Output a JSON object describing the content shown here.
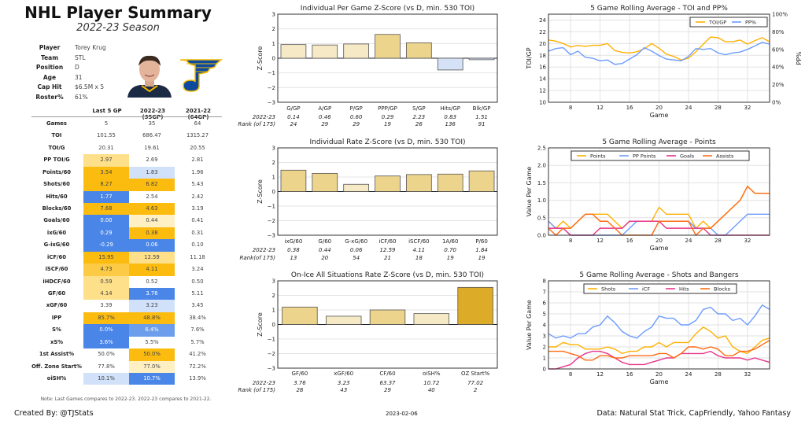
{
  "header": {
    "title": "NHL Player Summary",
    "subtitle": "2022-23 Season"
  },
  "player_info": [
    {
      "label": "Player",
      "value": "Torey Krug"
    },
    {
      "label": "Team",
      "value": "STL"
    },
    {
      "label": "Position",
      "value": "D"
    },
    {
      "label": "Age",
      "value": "31"
    },
    {
      "label": "Cap Hit",
      "value": "$6.5M x 5"
    },
    {
      "label": "Roster%",
      "value": "61%"
    }
  ],
  "images": {
    "headshot": "player-headshot",
    "logo": "St. Louis Blues logo"
  },
  "cell_colors": {
    "gold": "#fbbc0f",
    "midgold": "#fcca45",
    "lightgold": "#fedf8a",
    "palegold": "#fff0c4",
    "blue": "#4a86e8",
    "midblue": "#6d9eeb",
    "lightblue": "#d2e1fa",
    "": "transparent"
  },
  "table": {
    "columns": [
      "Last 5 GP",
      "2022-23 (35GP)",
      "2021-22 (64GP)"
    ],
    "rows": [
      {
        "label": "Games",
        "values": [
          "5",
          "35",
          "64"
        ],
        "colors": [
          "",
          ""
        ]
      },
      {
        "label": "TOI",
        "values": [
          "101.55",
          "686.47",
          "1315.27"
        ],
        "colors": [
          "",
          ""
        ]
      },
      {
        "label": "TOI/G",
        "values": [
          "20.31",
          "19.61",
          "20.55"
        ],
        "colors": [
          "",
          ""
        ]
      },
      {
        "label": "PP TOI/G",
        "values": [
          "2.97",
          "2.69",
          "2.81"
        ],
        "colors": [
          "lightgold",
          ""
        ]
      },
      {
        "label": "Points/60",
        "values": [
          "3.54",
          "1.83",
          "1.96"
        ],
        "colors": [
          "gold",
          "lightblue"
        ]
      },
      {
        "label": "Shots/60",
        "values": [
          "8.27",
          "6.82",
          "5.43"
        ],
        "colors": [
          "gold",
          "gold"
        ]
      },
      {
        "label": "Hits/60",
        "values": [
          "1.77",
          "2.54",
          "2.42"
        ],
        "colors": [
          "blue",
          ""
        ]
      },
      {
        "label": "Blocks/60",
        "values": [
          "7.68",
          "4.63",
          "3.19"
        ],
        "colors": [
          "gold",
          "gold"
        ]
      },
      {
        "label": "Goals/60",
        "values": [
          "0.00",
          "0.44",
          "0.41"
        ],
        "colors": [
          "blue",
          "palegold"
        ]
      },
      {
        "label": "ixG/60",
        "values": [
          "0.29",
          "0.38",
          "0.31"
        ],
        "colors": [
          "blue",
          "gold"
        ]
      },
      {
        "label": "G-ixG/60",
        "values": [
          "-0.29",
          "0.06",
          "0.10"
        ],
        "colors": [
          "blue",
          "blue"
        ]
      },
      {
        "label": "iCF/60",
        "values": [
          "15.95",
          "12.59",
          "11.18"
        ],
        "colors": [
          "gold",
          "lightgold"
        ]
      },
      {
        "label": "iSCF/60",
        "values": [
          "4.73",
          "4.11",
          "3.24"
        ],
        "colors": [
          "midgold",
          "gold"
        ]
      },
      {
        "label": "iHDCF/60",
        "values": [
          "0.59",
          "0.52",
          "0.50"
        ],
        "colors": [
          "lightgold",
          ""
        ]
      },
      {
        "label": "GF/60",
        "values": [
          "4.14",
          "3.76",
          "5.11"
        ],
        "colors": [
          "lightgold",
          "blue"
        ]
      },
      {
        "label": "xGF/60",
        "values": [
          "3.39",
          "3.23",
          "3.45"
        ],
        "colors": [
          "",
          "lightblue"
        ]
      },
      {
        "label": "IPP",
        "values": [
          "85.7%",
          "48.8%",
          "38.4%"
        ],
        "colors": [
          "gold",
          "gold"
        ]
      },
      {
        "label": "S%",
        "values": [
          "0.0%",
          "6.4%",
          "7.6%"
        ],
        "colors": [
          "blue",
          "midblue"
        ]
      },
      {
        "label": "xS%",
        "values": [
          "3.6%",
          "5.5%",
          "5.7%"
        ],
        "colors": [
          "blue",
          ""
        ]
      },
      {
        "label": "1st Assist%",
        "values": [
          "50.0%",
          "50.0%",
          "41.2%"
        ],
        "colors": [
          "",
          "gold"
        ]
      },
      {
        "label": "Off. Zone Start%",
        "values": [
          "77.8%",
          "77.0%",
          "72.2%"
        ],
        "colors": [
          "",
          "palegold"
        ]
      },
      {
        "label": "oiSH%",
        "values": [
          "10.1%",
          "10.7%",
          "13.9%"
        ],
        "colors": [
          "lightblue",
          "blue"
        ]
      }
    ],
    "note": "Note: Last Games compares to 2022-23. 2022-23 compares to 2021-22."
  },
  "footer": {
    "credit": "Created By: @TJStats",
    "date": "2023-02-06",
    "source": "Data: Natural Stat Trick, CapFriendly, Yahoo Fantasy"
  },
  "chart_data": [
    {
      "type": "bar",
      "title": "Individual Per Game Z-Score (vs D, min. 530 TOI)",
      "ylabel": "Z-Score",
      "ylim": [
        -3,
        3
      ],
      "yticks": [
        "3",
        "2",
        "1",
        "0",
        "−1",
        "−2",
        "−3"
      ],
      "grid": true,
      "categories": [
        "G/GP",
        "A/GP",
        "P/GP",
        "PPP/GP",
        "S/GP",
        "Hits/GP",
        "Blk/GP"
      ],
      "values": [
        0.93,
        0.9,
        0.97,
        1.62,
        1.05,
        -0.8,
        -0.1
      ],
      "row_labels": [
        "2022-23",
        "Rank (of 175)"
      ],
      "season_values": [
        "0.14",
        "0.46",
        "0.60",
        "0.29",
        "2.23",
        "0.83",
        "1.51"
      ],
      "ranks": [
        "24",
        "29",
        "29",
        "19",
        "26",
        "136",
        "91"
      ]
    },
    {
      "type": "bar",
      "title": "Individual Rate Z-Score (vs D, min. 530 TOI)",
      "ylabel": "Z-Score",
      "ylim": [
        -3,
        3
      ],
      "yticks": [
        "3",
        "2",
        "1",
        "0",
        "−1",
        "−2",
        "−3"
      ],
      "grid": true,
      "categories": [
        "ixG/60",
        "G/60",
        "G-xG/60",
        "iCF/60",
        "iSCF/60",
        "1A/60",
        "P/60"
      ],
      "values": [
        1.47,
        1.25,
        0.5,
        1.07,
        1.17,
        1.2,
        1.42
      ],
      "row_labels": [
        "2022-23",
        "Rank(of 175)"
      ],
      "season_values": [
        "0.38",
        "0.44",
        "0.06",
        "12.59",
        "4.11",
        "0.70",
        "1.84"
      ],
      "ranks": [
        "13",
        "20",
        "54",
        "21",
        "18",
        "19",
        "19"
      ]
    },
    {
      "type": "bar",
      "title": "On-Ice All Situations Rate Z-Score (vs D, min. 530 TOI)",
      "ylabel": "Z-Score",
      "ylim": [
        -3,
        3
      ],
      "yticks": [
        "3",
        "2",
        "1",
        "0",
        "−1",
        "−2",
        "−3"
      ],
      "grid": true,
      "categories": [
        "GF/60",
        "xGF/60",
        "CF/60",
        "oiSH%",
        "OZ Start%"
      ],
      "values": [
        1.2,
        0.57,
        1.0,
        0.75,
        2.55
      ],
      "row_labels": [
        "2022-23",
        "Rank (of 175)"
      ],
      "season_values": [
        "3.76",
        "3.23",
        "63.37",
        "10.72",
        "77.02"
      ],
      "ranks": [
        "28",
        "43",
        "29",
        "40",
        "2"
      ]
    },
    {
      "type": "line",
      "title": "5 Game Rolling Average - TOI and PP%",
      "xlabel": "Game",
      "ylabel": "TOI/GP",
      "ylabel_right": "PP%",
      "xlim": [
        5,
        35
      ],
      "ylim": [
        10,
        25
      ],
      "ylim_right": [
        0,
        100
      ],
      "xticks": [
        "8",
        "12",
        "16",
        "20",
        "24",
        "28",
        "32"
      ],
      "yticks": [
        "10",
        "12",
        "14",
        "16",
        "18",
        "20",
        "22",
        "24"
      ],
      "yticks_right": [
        "0%",
        "20%",
        "40%",
        "60%",
        "80%",
        "100%"
      ],
      "grid": true,
      "legend": "top-right",
      "x": [
        5,
        6,
        7,
        8,
        9,
        10,
        11,
        12,
        13,
        14,
        15,
        16,
        17,
        18,
        19,
        20,
        21,
        22,
        23,
        24,
        25,
        26,
        27,
        28,
        29,
        30,
        31,
        32,
        33,
        34,
        35
      ],
      "series": [
        {
          "name": "TOI/GP",
          "axis": "left",
          "color": "#ffb000",
          "values": [
            20.6,
            20.4,
            20.0,
            19.4,
            19.7,
            19.5,
            19.7,
            19.7,
            20.0,
            18.8,
            18.5,
            18.4,
            18.6,
            19.1,
            20.0,
            19.2,
            18.2,
            17.8,
            17.2,
            17.5,
            18.6,
            19.9,
            21.1,
            21.0,
            20.3,
            20.3,
            20.6,
            19.9,
            20.5,
            21.0,
            20.3
          ]
        },
        {
          "name": "PP%",
          "axis": "right",
          "color": "#6c9cff",
          "values": [
            58,
            61,
            62,
            54,
            58,
            51,
            50,
            47,
            48,
            43,
            44,
            49,
            54,
            62,
            58,
            53,
            49,
            48,
            47,
            52,
            61,
            60,
            61,
            56,
            54,
            56,
            57,
            60,
            64,
            68,
            66
          ]
        }
      ]
    },
    {
      "type": "line",
      "title": "5 Game Rolling Average - Points",
      "xlabel": "Game",
      "ylabel": "Value Per Game",
      "xlim": [
        5,
        35
      ],
      "ylim": [
        0,
        2.5
      ],
      "xticks": [
        "8",
        "12",
        "16",
        "20",
        "24",
        "28",
        "32"
      ],
      "yticks": [
        "0.0",
        "0.5",
        "1.0",
        "1.5",
        "2.0",
        "2.5"
      ],
      "grid": true,
      "legend": "top",
      "x": [
        5,
        6,
        7,
        8,
        9,
        10,
        11,
        12,
        13,
        14,
        15,
        16,
        17,
        18,
        19,
        20,
        21,
        22,
        23,
        24,
        25,
        26,
        27,
        28,
        29,
        30,
        31,
        32,
        33,
        34,
        35
      ],
      "series": [
        {
          "name": "Points",
          "color": "#ffb000",
          "values": [
            0.4,
            0.2,
            0.4,
            0.2,
            0.4,
            0.6,
            0.6,
            0.6,
            0.6,
            0.4,
            0.2,
            0.4,
            0.4,
            0.4,
            0.4,
            0.8,
            0.6,
            0.6,
            0.6,
            0.6,
            0.2,
            0.4,
            0.2,
            0.4,
            0.6,
            0.8,
            1.0,
            1.4,
            1.2,
            1.2,
            1.2
          ]
        },
        {
          "name": "PP Points",
          "color": "#6c9cff",
          "values": [
            0.4,
            0.2,
            0.2,
            0,
            0,
            0,
            0,
            0,
            0,
            0,
            0,
            0.2,
            0.4,
            0.4,
            0.4,
            0.4,
            0.4,
            0.4,
            0.4,
            0.4,
            0.2,
            0.2,
            0.2,
            0,
            0,
            0.2,
            0.4,
            0.6,
            0.6,
            0.6,
            0.6
          ]
        },
        {
          "name": "Goals",
          "color": "#e6358a",
          "values": [
            0.2,
            0.2,
            0.2,
            0,
            0,
            0,
            0,
            0.2,
            0.2,
            0.2,
            0.2,
            0.4,
            0.4,
            0.4,
            0.4,
            0.4,
            0.2,
            0.2,
            0.2,
            0.2,
            0.2,
            0.2,
            0,
            0,
            0,
            0,
            0,
            0,
            0,
            0,
            0
          ]
        },
        {
          "name": "Assists",
          "color": "#ff6a13",
          "values": [
            0.2,
            0,
            0.2,
            0.2,
            0.4,
            0.6,
            0.6,
            0.4,
            0.4,
            0.2,
            0,
            0,
            0,
            0,
            0,
            0.4,
            0.4,
            0.4,
            0.4,
            0.4,
            0,
            0.2,
            0.2,
            0.4,
            0.6,
            0.8,
            1.0,
            1.4,
            1.2,
            1.2,
            1.2
          ]
        }
      ]
    },
    {
      "type": "line",
      "title": "5 Game Rolling Average - Shots and Bangers",
      "xlabel": "Game",
      "ylabel": "Value Per Game",
      "xlim": [
        5,
        35
      ],
      "ylim": [
        0,
        8
      ],
      "xticks": [
        "8",
        "12",
        "16",
        "20",
        "24",
        "28",
        "32"
      ],
      "yticks": [
        "0",
        "1",
        "2",
        "3",
        "4",
        "5",
        "6",
        "7",
        "8"
      ],
      "grid": true,
      "legend": "top",
      "x": [
        5,
        6,
        7,
        8,
        9,
        10,
        11,
        12,
        13,
        14,
        15,
        16,
        17,
        18,
        19,
        20,
        21,
        22,
        23,
        24,
        25,
        26,
        27,
        28,
        29,
        30,
        31,
        32,
        33,
        34,
        35
      ],
      "series": [
        {
          "name": "Shots",
          "color": "#ffb000",
          "values": [
            2.0,
            2.0,
            2.4,
            2.2,
            2.2,
            1.8,
            1.8,
            1.8,
            2.0,
            1.8,
            1.4,
            1.6,
            1.6,
            2.0,
            2.0,
            2.4,
            2.0,
            2.4,
            2.4,
            2.4,
            3.2,
            3.8,
            3.4,
            2.8,
            3.0,
            2.0,
            1.6,
            1.4,
            2.0,
            2.6,
            2.8
          ]
        },
        {
          "name": "iCF",
          "color": "#6c9cff",
          "values": [
            3.2,
            2.8,
            3.0,
            2.8,
            3.2,
            3.2,
            3.8,
            4.0,
            4.8,
            4.2,
            3.4,
            3.0,
            2.8,
            3.4,
            3.8,
            4.8,
            4.6,
            4.6,
            4.0,
            4.0,
            4.4,
            5.4,
            5.6,
            5.0,
            5.0,
            4.4,
            4.6,
            4.0,
            4.8,
            5.8,
            5.4
          ]
        },
        {
          "name": "Hits",
          "color": "#e6358a",
          "values": [
            0,
            0,
            0.2,
            0.4,
            1.0,
            1.4,
            1.6,
            1.6,
            1.4,
            1.0,
            0.6,
            0.4,
            0.4,
            0.4,
            0.6,
            0.8,
            1.0,
            1.0,
            1.4,
            1.4,
            1.4,
            1.4,
            1.6,
            1.2,
            1.0,
            1.0,
            1.0,
            0.8,
            1.0,
            0.8,
            0.6
          ]
        },
        {
          "name": "Blocks",
          "color": "#ff6a13",
          "values": [
            1.6,
            1.6,
            1.6,
            1.4,
            1.2,
            0.8,
            0.8,
            1.2,
            1.2,
            1.0,
            1.0,
            1.2,
            1.2,
            1.2,
            1.2,
            1.4,
            1.4,
            1.0,
            1.4,
            2.0,
            2.0,
            1.8,
            2.0,
            1.8,
            1.2,
            1.2,
            1.6,
            1.6,
            1.8,
            2.2,
            2.6
          ]
        }
      ]
    }
  ]
}
